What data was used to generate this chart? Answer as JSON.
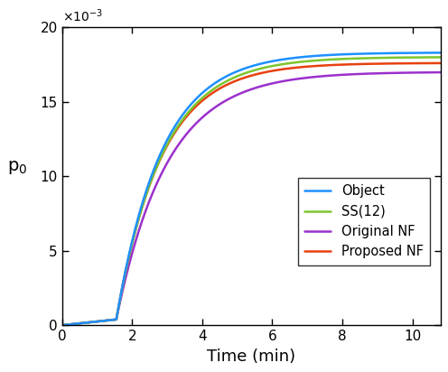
{
  "xlabel": "Time (min)",
  "ylabel": "p$_0$",
  "xlim": [
    0,
    10.8
  ],
  "ylim": [
    0,
    0.02
  ],
  "ytick_vals": [
    0,
    0.005,
    0.01,
    0.015,
    0.02
  ],
  "ytick_labels": [
    "0",
    "5",
    "10",
    "15",
    "20"
  ],
  "xticks": [
    0,
    2,
    4,
    6,
    8,
    10
  ],
  "legend_labels": [
    "Object",
    "SS(12)",
    "Original NF",
    "Proposed NF"
  ],
  "colors": {
    "Object": "#1E90FF",
    "SS(12)": "#7DC52E",
    "Original NF": "#9B30CC",
    "Proposed NF": "#E84010"
  },
  "figsize": [
    4.96,
    4.12
  ],
  "dpi": 100,
  "curve_params": {
    "Object": {
      "delay": 1.55,
      "rise": 1.3,
      "plateau": 0.0183,
      "early_slope": 0.00025
    },
    "SS(12)": {
      "delay": 1.55,
      "rise": 1.32,
      "plateau": 0.018,
      "early_slope": 0.00025
    },
    "Proposed NF": {
      "delay": 1.55,
      "rise": 1.28,
      "plateau": 0.0176,
      "early_slope": 0.00025
    },
    "Original NF": {
      "delay": 1.55,
      "rise": 1.45,
      "plateau": 0.017,
      "early_slope": 0.00025
    }
  }
}
